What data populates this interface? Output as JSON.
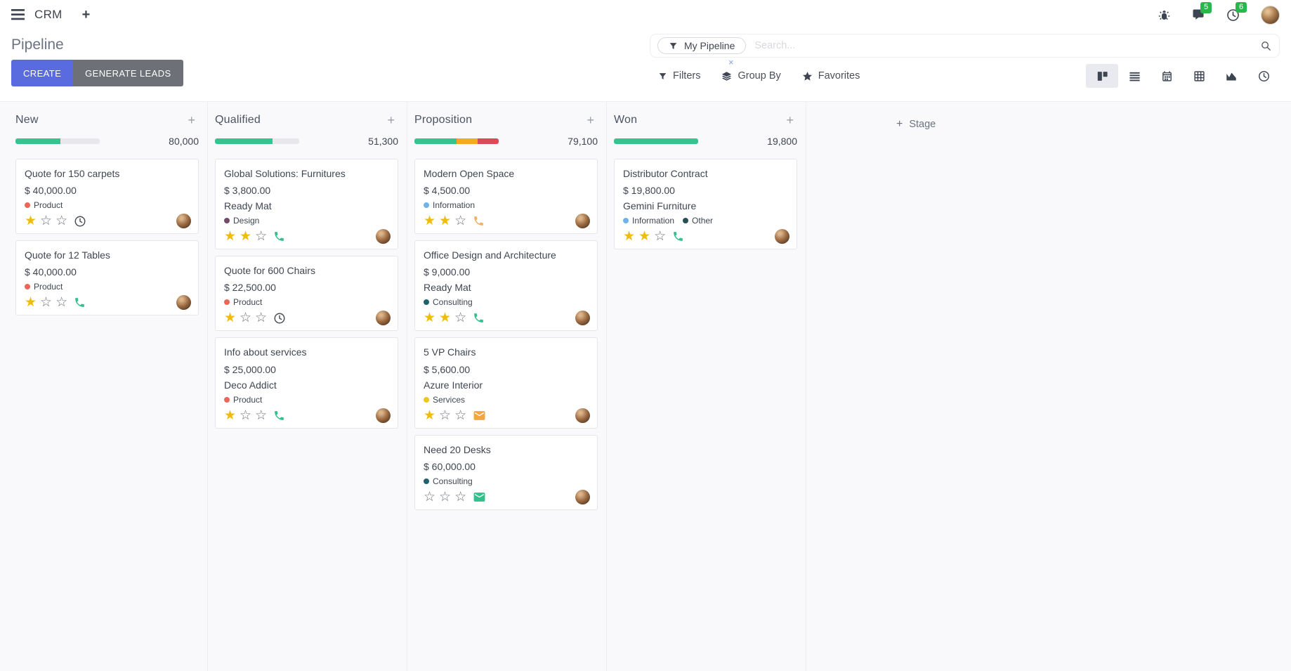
{
  "navbar": {
    "app_name": "CRM",
    "new_window_label": "+",
    "messages_badge": "5",
    "activities_badge": "6",
    "icons": [
      "menu-icon",
      "bug-icon",
      "messages-icon",
      "activities-icon",
      "user-avatar"
    ]
  },
  "control_panel": {
    "title": "Pipeline",
    "create_label": "CREATE",
    "generate_leads_label": "GENERATE LEADS",
    "search": {
      "facet": "My Pipeline",
      "facet_remove": "×",
      "placeholder": "Search...",
      "icons": [
        "filter-funnel-icon",
        "search-icon"
      ]
    },
    "filters_label": "Filters",
    "group_by_label": "Group By",
    "favorites_label": "Favorites"
  },
  "view_switcher": {
    "views": [
      {
        "name": "kanban",
        "active": true
      },
      {
        "name": "list",
        "active": false
      },
      {
        "name": "calendar",
        "active": false
      },
      {
        "name": "pivot",
        "active": false
      },
      {
        "name": "graph",
        "active": false
      },
      {
        "name": "activity",
        "active": false
      }
    ]
  },
  "board": {
    "add_column_label": "Stage",
    "colors": {
      "progress_green": "#37c390",
      "progress_orange": "#f5a91f",
      "progress_red": "#d84b57",
      "star_gold": "#f0bc0c"
    },
    "columns": [
      {
        "name": "New",
        "total": "80,000",
        "progress": [
          {
            "color": "#37c390",
            "pct": 53
          }
        ],
        "cards": [
          {
            "title": "Quote for 150 carpets",
            "amount": "$ 40,000.00",
            "tags": [
              {
                "label": "Product",
                "color": "#ea6759"
              }
            ],
            "stars_filled": 1,
            "stars_total": 3,
            "activity_icon": {
              "name": "clock-icon",
              "color": "#495057"
            },
            "avatar": true
          },
          {
            "title": "Quote for 12 Tables",
            "amount": "$ 40,000.00",
            "tags": [
              {
                "label": "Product",
                "color": "#ea6759"
              }
            ],
            "stars_filled": 1,
            "stars_total": 3,
            "activity_icon": {
              "name": "phone-icon",
              "color": "#34c08d"
            },
            "avatar": true
          }
        ]
      },
      {
        "name": "Qualified",
        "total": "51,300",
        "progress": [
          {
            "color": "#37c390",
            "pct": 68
          }
        ],
        "cards": [
          {
            "title": "Global Solutions: Furnitures",
            "amount": "$ 3,800.00",
            "contact": "Ready Mat",
            "tags": [
              {
                "label": "Design",
                "color": "#714b67"
              }
            ],
            "stars_filled": 2,
            "stars_total": 3,
            "activity_icon": {
              "name": "phone-icon",
              "color": "#34c08d"
            },
            "avatar": true
          },
          {
            "title": "Quote for 600 Chairs",
            "amount": "$ 22,500.00",
            "tags": [
              {
                "label": "Product",
                "color": "#ea6759"
              }
            ],
            "stars_filled": 1,
            "stars_total": 3,
            "activity_icon": {
              "name": "clock-icon",
              "color": "#495057"
            },
            "avatar": true
          },
          {
            "title": "Info about services",
            "amount": "$ 25,000.00",
            "contact": "Deco Addict",
            "tags": [
              {
                "label": "Product",
                "color": "#ea6759"
              }
            ],
            "stars_filled": 1,
            "stars_total": 3,
            "activity_icon": {
              "name": "phone-icon",
              "color": "#34c08d"
            },
            "avatar": true
          }
        ]
      },
      {
        "name": "Proposition",
        "total": "79,100",
        "progress": [
          {
            "color": "#37c390",
            "pct": 50
          },
          {
            "color": "#f5a91f",
            "pct": 25
          },
          {
            "color": "#d84b57",
            "pct": 25
          }
        ],
        "cards": [
          {
            "title": "Modern Open Space",
            "amount": "$ 4,500.00",
            "tags": [
              {
                "label": "Information",
                "color": "#6fb3e8"
              }
            ],
            "stars_filled": 2,
            "stars_total": 3,
            "activity_icon": {
              "name": "phone-icon",
              "color": "#f2b266"
            },
            "avatar": true
          },
          {
            "title": "Office Design and Architecture",
            "amount": "$ 9,000.00",
            "contact": "Ready Mat",
            "tags": [
              {
                "label": "Consulting",
                "color": "#20626c"
              }
            ],
            "stars_filled": 2,
            "stars_total": 3,
            "activity_icon": {
              "name": "phone-icon",
              "color": "#34c08d"
            },
            "avatar": true
          },
          {
            "title": "5 VP Chairs",
            "amount": "$ 5,600.00",
            "contact": "Azure Interior",
            "tags": [
              {
                "label": "Services",
                "color": "#eec71b"
              }
            ],
            "stars_filled": 1,
            "stars_total": 3,
            "activity_icon": {
              "name": "envelope-icon",
              "color": "#f0a73c"
            },
            "avatar": true
          },
          {
            "title": "Need 20 Desks",
            "amount": "$ 60,000.00",
            "tags": [
              {
                "label": "Consulting",
                "color": "#20626c"
              }
            ],
            "stars_filled": 0,
            "stars_total": 3,
            "activity_icon": {
              "name": "envelope-icon",
              "color": "#34c08d"
            },
            "avatar": true
          }
        ]
      },
      {
        "name": "Won",
        "total": "19,800",
        "progress": [
          {
            "color": "#37c390",
            "pct": 100
          }
        ],
        "cards": [
          {
            "title": "Distributor Contract",
            "amount": "$ 19,800.00",
            "contact": "Gemini Furniture",
            "tags": [
              {
                "label": "Information",
                "color": "#6fb3e8"
              },
              {
                "label": "Other",
                "color": "#274e57"
              }
            ],
            "stars_filled": 2,
            "stars_total": 3,
            "activity_icon": {
              "name": "phone-icon",
              "color": "#34c08d"
            },
            "avatar": true
          }
        ]
      }
    ]
  }
}
